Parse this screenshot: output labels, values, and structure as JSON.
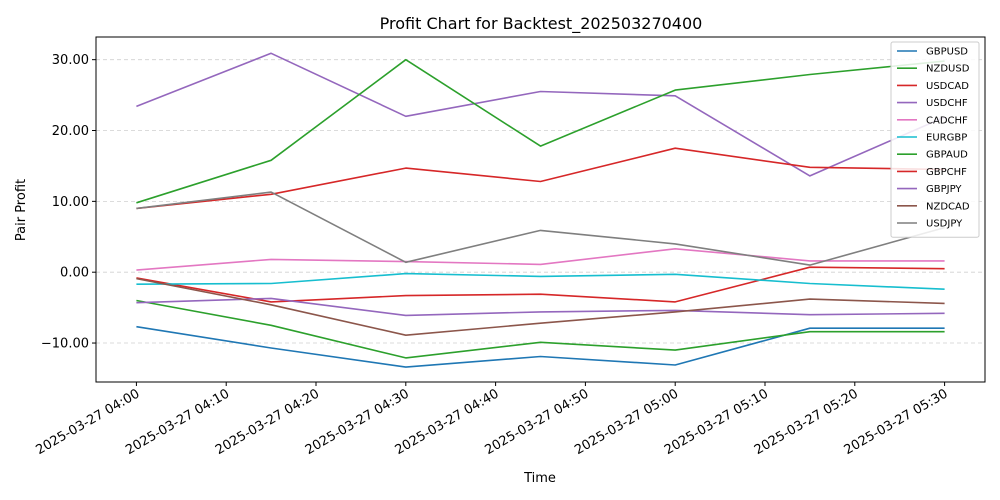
{
  "chart_data": {
    "type": "line",
    "title": "Profit Chart for Backtest_202503270400",
    "xlabel": "Time",
    "ylabel": "Pair Profit",
    "ylim": [
      -15.5,
      33.2
    ],
    "y_ticks": [
      -10,
      0,
      10,
      20,
      30
    ],
    "y_tick_labels": [
      "−10.00",
      "0.00",
      "10.00",
      "20.00",
      "30.00"
    ],
    "x_tick_labels": [
      "2025-03-27 04:00",
      "2025-03-27 04:10",
      "2025-03-27 04:20",
      "2025-03-27 04:30",
      "2025-03-27 04:40",
      "2025-03-27 04:50",
      "2025-03-27 05:00",
      "2025-03-27 05:10",
      "2025-03-27 05:20",
      "2025-03-27 05:30"
    ],
    "x_tick_minutes": [
      0,
      10,
      20,
      30,
      40,
      50,
      60,
      70,
      80,
      90
    ],
    "xlim_minutes": [
      -4.5,
      94.5
    ],
    "x_minutes": [
      0,
      15,
      30,
      45,
      60,
      75,
      90
    ],
    "grid": "y-dashed",
    "legend_position": "upper-right",
    "series": [
      {
        "name": "GBPUSD",
        "color": "#1f77b4",
        "values": [
          -7.7,
          -10.7,
          -13.4,
          -11.9,
          -13.1,
          -7.9,
          -7.9
        ]
      },
      {
        "name": "NZDUSD",
        "color": "#2ca02c",
        "values": [
          -4.0,
          -7.5,
          -12.1,
          -9.9,
          -11.0,
          -8.4,
          -8.4
        ]
      },
      {
        "name": "USDCAD",
        "color": "#d62728",
        "values": [
          -0.8,
          -4.2,
          -3.3,
          -3.1,
          -4.2,
          0.7,
          0.5
        ]
      },
      {
        "name": "USDCHF",
        "color": "#9467bd",
        "values": [
          23.4,
          30.9,
          22.0,
          25.5,
          24.9,
          13.6,
          21.9
        ]
      },
      {
        "name": "CADCHF",
        "color": "#e377c2",
        "values": [
          0.3,
          1.8,
          1.5,
          1.1,
          3.3,
          1.6,
          1.6
        ]
      },
      {
        "name": "EURGBP",
        "color": "#17becf",
        "values": [
          -1.7,
          -1.6,
          -0.2,
          -0.6,
          -0.3,
          -1.6,
          -2.4
        ]
      },
      {
        "name": "GBPAUD",
        "color": "#2ca02c",
        "values": [
          9.8,
          15.8,
          30.0,
          17.8,
          25.7,
          27.9,
          29.8
        ]
      },
      {
        "name": "GBPCHF",
        "color": "#d62728",
        "values": [
          9.0,
          11.0,
          14.7,
          12.8,
          17.5,
          14.8,
          14.5
        ]
      },
      {
        "name": "GBPJPY",
        "color": "#9467bd",
        "values": [
          -4.3,
          -3.7,
          -6.1,
          -5.6,
          -5.4,
          -6.0,
          -5.8
        ]
      },
      {
        "name": "NZDCAD",
        "color": "#8c564b",
        "values": [
          -0.9,
          -4.6,
          -8.9,
          -7.2,
          -5.6,
          -3.8,
          -4.4
        ]
      },
      {
        "name": "USDJPY",
        "color": "#7f7f7f",
        "values": [
          9.0,
          11.3,
          1.4,
          5.9,
          4.0,
          1.0,
          6.3
        ]
      }
    ]
  }
}
